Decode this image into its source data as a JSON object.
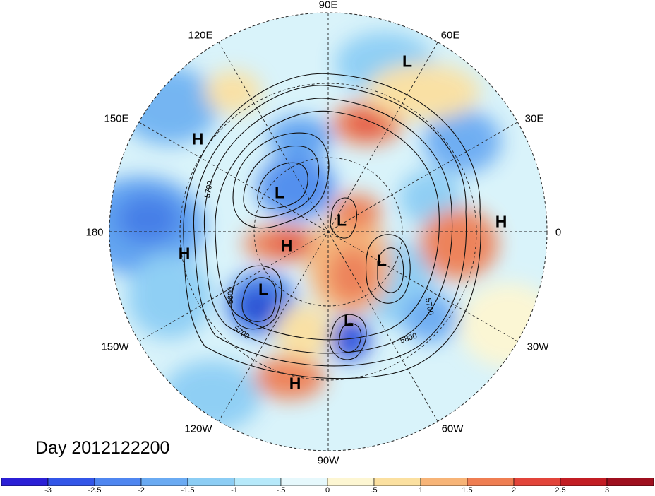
{
  "title": "Day 2012122200",
  "longitude_labels": [
    {
      "text": "90E"
    },
    {
      "text": "60E"
    },
    {
      "text": "30E"
    },
    {
      "text": "0"
    },
    {
      "text": "30W"
    },
    {
      "text": "60W"
    },
    {
      "text": "90W"
    },
    {
      "text": "120W"
    },
    {
      "text": "150W"
    },
    {
      "text": "180"
    },
    {
      "text": "150E"
    },
    {
      "text": "120E"
    }
  ],
  "pressure_centers": [
    {
      "type": "L"
    },
    {
      "type": "H"
    },
    {
      "type": "L"
    },
    {
      "type": "H"
    },
    {
      "type": "L"
    },
    {
      "type": "H"
    },
    {
      "type": "H"
    },
    {
      "type": "L"
    },
    {
      "type": "L"
    },
    {
      "type": "L"
    },
    {
      "type": "H"
    }
  ],
  "contour_labels": [
    "5700",
    "5600",
    "5700",
    "5700",
    "5800"
  ],
  "colorbar": {
    "tick_labels": [
      "-3",
      "-2.5",
      "-2",
      "-1.5",
      "-1",
      "-.5",
      "0",
      ".5",
      "1",
      "1.5",
      "2",
      "2.5",
      "3"
    ],
    "colors": [
      "#2b1fd6",
      "#3356e8",
      "#4f86f0",
      "#6aaaf2",
      "#8ccdf4",
      "#b6e9fa",
      "#e6f8fc",
      "#fdf6d2",
      "#fbe0a0",
      "#f7b477",
      "#ef7e52",
      "#e2443a",
      "#c21d24",
      "#9e0f1e"
    ]
  }
}
